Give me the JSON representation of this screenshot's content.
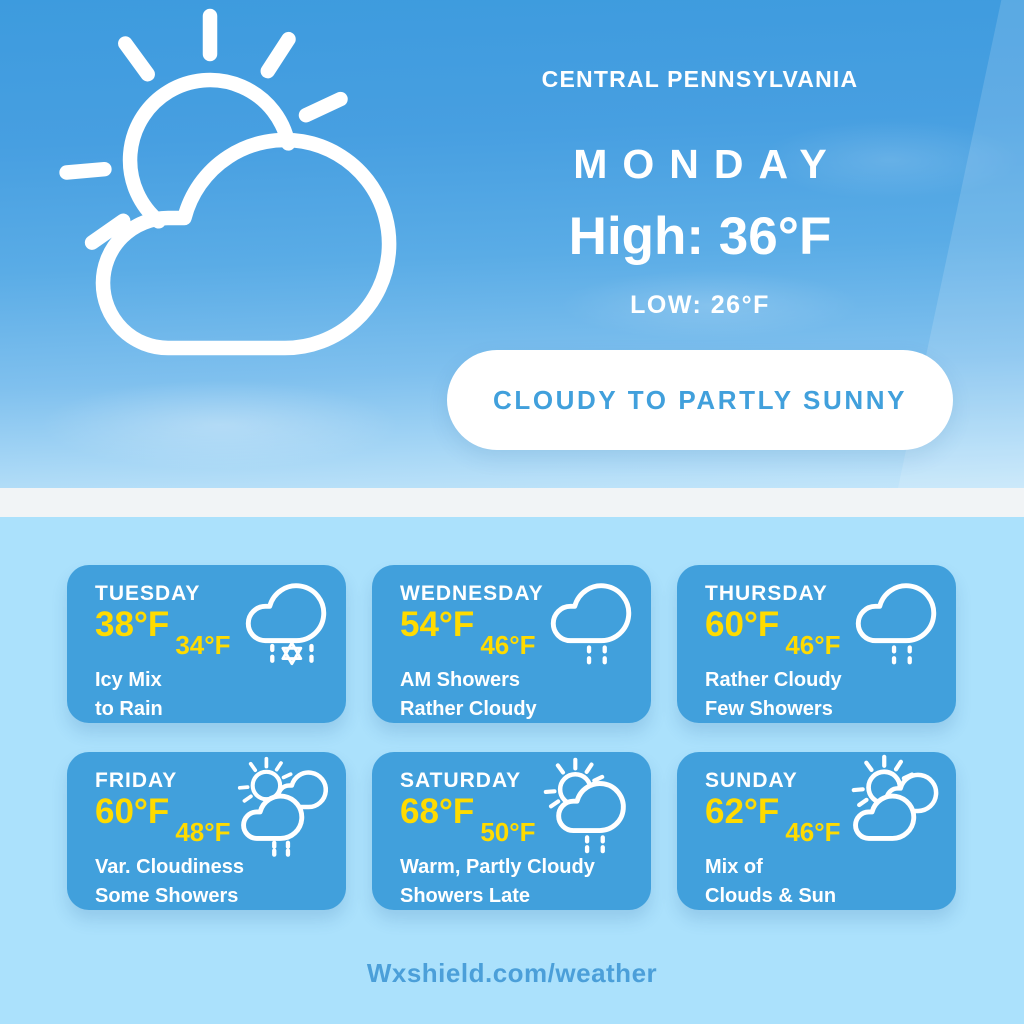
{
  "hero": {
    "region": "CENTRAL PENNSYLVANIA",
    "day": "MONDAY",
    "high_label": "High: 36°F",
    "low_label": "LOW: 26°F",
    "condition_pill": "CLOUDY TO PARTLY SUNNY"
  },
  "forecast_cards": [
    {
      "day": "TUESDAY",
      "high": "38°F",
      "low": "34°F",
      "line1": "Icy Mix",
      "line2": "to Rain",
      "icon": "sleet-cloud"
    },
    {
      "day": "WEDNESDAY",
      "high": "54°F",
      "low": "46°F",
      "line1": "AM Showers",
      "line2": "Rather Cloudy",
      "icon": "rain-cloud"
    },
    {
      "day": "THURSDAY",
      "high": "60°F",
      "low": "46°F",
      "line1": "Rather Cloudy",
      "line2": "Few Showers",
      "icon": "rain-cloud"
    },
    {
      "day": "FRIDAY",
      "high": "60°F",
      "low": "48°F",
      "line1": "Var. Cloudiness",
      "line2": "Some Showers",
      "icon": "sun-rain-clouds"
    },
    {
      "day": "SATURDAY",
      "high": "68°F",
      "low": "50°F",
      "line1": "Warm, Partly Cloudy",
      "line2": "Showers Late",
      "icon": "sun-rain-cloud"
    },
    {
      "day": "SUNDAY",
      "high": "62°F",
      "low": "46°F",
      "line1": "Mix of",
      "line2": "Clouds & Sun",
      "icon": "sun-clouds"
    }
  ],
  "footer": {
    "website": "Wxshield.com/weather"
  },
  "colors": {
    "card_blue": "#41A0DC",
    "panel_blue": "#ABE1FC",
    "accent_yellow": "#FFDB00",
    "pill_text_blue": "#41A0DC",
    "footer_text_blue": "#4B9FD9",
    "divider": "#F1F4F6"
  }
}
